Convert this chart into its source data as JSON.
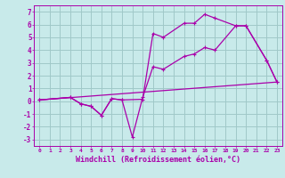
{
  "background_color": "#c8eaea",
  "grid_color": "#a0c8c8",
  "line_color": "#aa00aa",
  "marker": "+",
  "xlim": [
    -0.5,
    23.5
  ],
  "ylim": [
    -3.5,
    7.5
  ],
  "xlabel": "Windchill (Refroidissement éolien,°C)",
  "xlabel_fontsize": 6.0,
  "yticks": [
    -3,
    -2,
    -1,
    0,
    1,
    2,
    3,
    4,
    5,
    6,
    7
  ],
  "xticks": [
    0,
    1,
    2,
    3,
    4,
    5,
    6,
    7,
    8,
    9,
    10,
    11,
    12,
    13,
    14,
    15,
    16,
    17,
    18,
    19,
    20,
    21,
    22,
    23
  ],
  "series1_x": [
    0,
    3,
    4,
    5,
    6,
    7,
    8,
    10,
    11,
    12,
    14,
    15,
    16,
    17,
    19,
    20,
    22,
    23
  ],
  "series1_y": [
    0.1,
    0.3,
    -0.2,
    -0.4,
    -1.1,
    0.2,
    0.1,
    0.15,
    5.3,
    5.0,
    6.1,
    6.1,
    6.8,
    6.5,
    5.9,
    5.9,
    3.2,
    1.5
  ],
  "series2_x": [
    0,
    3,
    4,
    5,
    6,
    7,
    8,
    9,
    10,
    11,
    12,
    14,
    15,
    16,
    17,
    19,
    20,
    22,
    23
  ],
  "series2_y": [
    0.1,
    0.3,
    -0.2,
    -0.4,
    -1.1,
    0.2,
    0.1,
    -2.8,
    0.3,
    2.7,
    2.5,
    3.5,
    3.7,
    4.2,
    4.0,
    5.9,
    5.9,
    3.2,
    1.5
  ],
  "series3_x": [
    0,
    23
  ],
  "series3_y": [
    0.1,
    1.5
  ]
}
